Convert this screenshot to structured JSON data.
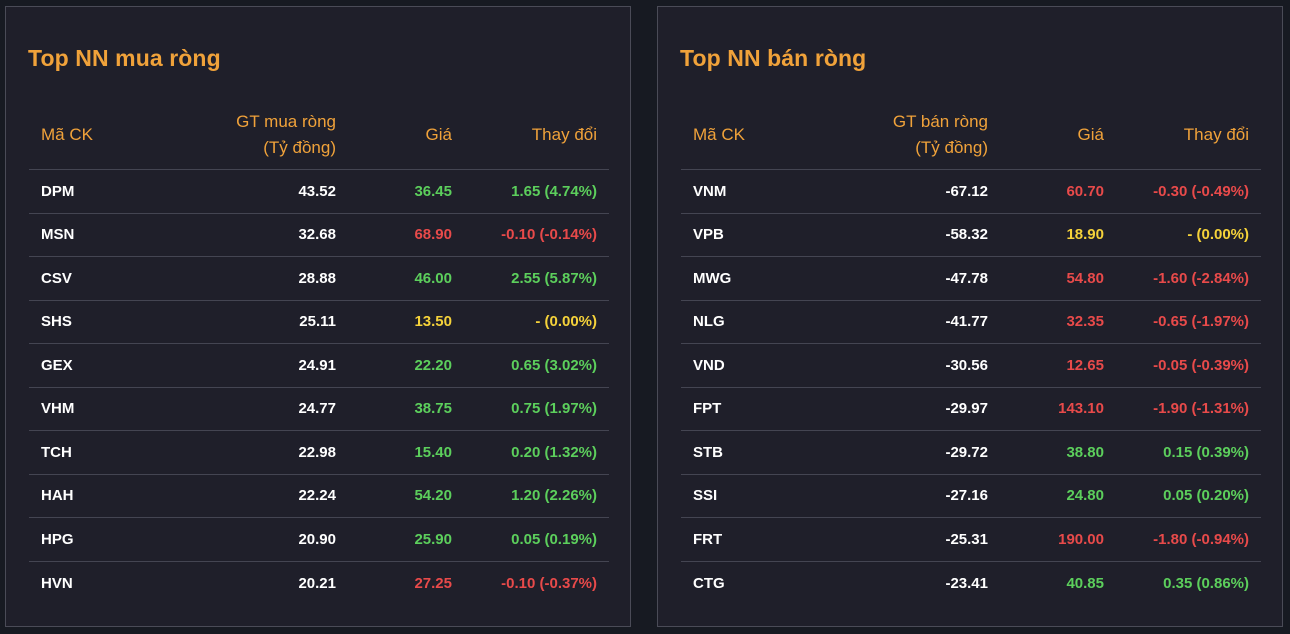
{
  "buy": {
    "title": "Top NN mua ròng",
    "headers": {
      "symbol": "Mã CK",
      "value_line1": "GT mua ròng",
      "value_line2": "(Tỷ đồng)",
      "price": "Giá",
      "change": "Thay đổi"
    },
    "rows": [
      {
        "symbol": "DPM",
        "value": "43.52",
        "price": "36.45",
        "change": "1.65 (4.74%)",
        "trend": "up"
      },
      {
        "symbol": "MSN",
        "value": "32.68",
        "price": "68.90",
        "change": "-0.10 (-0.14%)",
        "trend": "down"
      },
      {
        "symbol": "CSV",
        "value": "28.88",
        "price": "46.00",
        "change": "2.55 (5.87%)",
        "trend": "up"
      },
      {
        "symbol": "SHS",
        "value": "25.11",
        "price": "13.50",
        "change": "- (0.00%)",
        "trend": "ref"
      },
      {
        "symbol": "GEX",
        "value": "24.91",
        "price": "22.20",
        "change": "0.65 (3.02%)",
        "trend": "up"
      },
      {
        "symbol": "VHM",
        "value": "24.77",
        "price": "38.75",
        "change": "0.75 (1.97%)",
        "trend": "up"
      },
      {
        "symbol": "TCH",
        "value": "22.98",
        "price": "15.40",
        "change": "0.20 (1.32%)",
        "trend": "up"
      },
      {
        "symbol": "HAH",
        "value": "22.24",
        "price": "54.20",
        "change": "1.20 (2.26%)",
        "trend": "up"
      },
      {
        "symbol": "HPG",
        "value": "20.90",
        "price": "25.90",
        "change": "0.05 (0.19%)",
        "trend": "up"
      },
      {
        "symbol": "HVN",
        "value": "20.21",
        "price": "27.25",
        "change": "-0.10 (-0.37%)",
        "trend": "down"
      }
    ]
  },
  "sell": {
    "title": "Top NN bán ròng",
    "headers": {
      "symbol": "Mã CK",
      "value_line1": "GT bán ròng",
      "value_line2": "(Tỷ đồng)",
      "price": "Giá",
      "change": "Thay đổi"
    },
    "rows": [
      {
        "symbol": "VNM",
        "value": "-67.12",
        "price": "60.70",
        "change": "-0.30 (-0.49%)",
        "trend": "down"
      },
      {
        "symbol": "VPB",
        "value": "-58.32",
        "price": "18.90",
        "change": "- (0.00%)",
        "trend": "ref"
      },
      {
        "symbol": "MWG",
        "value": "-47.78",
        "price": "54.80",
        "change": "-1.60 (-2.84%)",
        "trend": "down"
      },
      {
        "symbol": "NLG",
        "value": "-41.77",
        "price": "32.35",
        "change": "-0.65 (-1.97%)",
        "trend": "down"
      },
      {
        "symbol": "VND",
        "value": "-30.56",
        "price": "12.65",
        "change": "-0.05 (-0.39%)",
        "trend": "down"
      },
      {
        "symbol": "FPT",
        "value": "-29.97",
        "price": "143.10",
        "change": "-1.90 (-1.31%)",
        "trend": "down"
      },
      {
        "symbol": "STB",
        "value": "-29.72",
        "price": "38.80",
        "change": "0.15 (0.39%)",
        "trend": "up"
      },
      {
        "symbol": "SSI",
        "value": "-27.16",
        "price": "24.80",
        "change": "0.05 (0.20%)",
        "trend": "up"
      },
      {
        "symbol": "FRT",
        "value": "-25.31",
        "price": "190.00",
        "change": "-1.80 (-0.94%)",
        "trend": "down"
      },
      {
        "symbol": "CTG",
        "value": "-23.41",
        "price": "40.85",
        "change": "0.35 (0.86%)",
        "trend": "up"
      }
    ]
  },
  "colors": {
    "accent": "#f0a23a",
    "up": "#5ccf5c",
    "down": "#e84a4a",
    "reference": "#f5d23a"
  }
}
